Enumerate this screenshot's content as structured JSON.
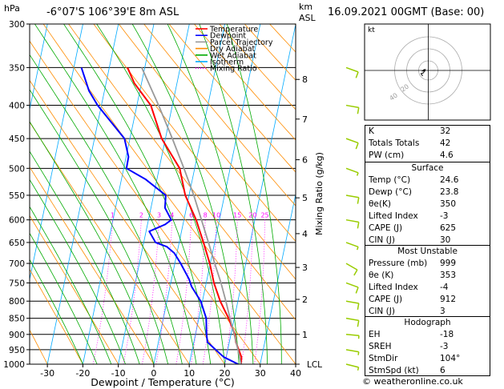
{
  "header": {
    "left_unit": "hPa",
    "location": "-6°07'S 106°39'E 8m ASL",
    "km_label": "km",
    "asl_label": "ASL",
    "datetime": "16.09.2021 00GMT (Base: 00)"
  },
  "legend": [
    {
      "label": "Temperature",
      "color": "#ff0000",
      "style": "solid"
    },
    {
      "label": "Dewpoint",
      "color": "#0000ff",
      "style": "solid"
    },
    {
      "label": "Parcel Trajectory",
      "color": "#999999",
      "style": "solid"
    },
    {
      "label": "Dry Adiabat",
      "color": "#ff8c00",
      "style": "solid"
    },
    {
      "label": "Wet Adiabat",
      "color": "#00aa00",
      "style": "solid"
    },
    {
      "label": "Isotherm",
      "color": "#00aaff",
      "style": "solid"
    },
    {
      "label": "Mixing Ratio",
      "color": "#ff00ff",
      "style": "dotted"
    }
  ],
  "chart_data": {
    "type": "line",
    "title": "",
    "xlabel": "Dewpoint / Temperature (°C)",
    "ylabel_left": "",
    "ylabel_right": "Mixing Ratio (g/kg)",
    "xlim": [
      -35,
      40
    ],
    "pressure_range_hpa": [
      300,
      1000
    ],
    "x_ticks": [
      "-30",
      "-20",
      "-10",
      "0",
      "10",
      "20",
      "30",
      "40"
    ],
    "pressure_ticks": [
      "300",
      "350",
      "400",
      "450",
      "500",
      "550",
      "600",
      "650",
      "700",
      "750",
      "800",
      "850",
      "900",
      "950",
      "1000"
    ],
    "km_ticks": [
      {
        "km": "8",
        "p": 365
      },
      {
        "km": "7",
        "p": 420
      },
      {
        "km": "6",
        "p": 485
      },
      {
        "km": "5",
        "p": 555
      },
      {
        "km": "4",
        "p": 630
      },
      {
        "km": "3",
        "p": 710
      },
      {
        "km": "2",
        "p": 795
      },
      {
        "km": "1",
        "p": 900
      }
    ],
    "lcl_label": "LCL",
    "lcl_p": 1000,
    "mixing_ratio_labels": [
      "1",
      "2",
      "3",
      "4",
      "6",
      "8",
      "10",
      "15",
      "20",
      "25"
    ],
    "skew_deg_per_hpa": 0.0286,
    "series": [
      {
        "name": "Temperature",
        "points": [
          [
            1000,
            24.6
          ],
          [
            975,
            24
          ],
          [
            950,
            22.5
          ],
          [
            925,
            21
          ],
          [
            900,
            20
          ],
          [
            850,
            16.8
          ],
          [
            800,
            13
          ],
          [
            750,
            9.8
          ],
          [
            700,
            7.2
          ],
          [
            650,
            4
          ],
          [
            600,
            0.5
          ],
          [
            550,
            -4
          ],
          [
            500,
            -7
          ],
          [
            450,
            -13.5
          ],
          [
            400,
            -18
          ],
          [
            370,
            -23.5
          ],
          [
            350,
            -26
          ]
        ]
      },
      {
        "name": "Dewpoint",
        "points": [
          [
            1000,
            23.8
          ],
          [
            975,
            19
          ],
          [
            950,
            16
          ],
          [
            925,
            13
          ],
          [
            900,
            12
          ],
          [
            850,
            10.5
          ],
          [
            800,
            7.5
          ],
          [
            760,
            3.8
          ],
          [
            740,
            2.5
          ],
          [
            700,
            -1
          ],
          [
            675,
            -3.5
          ],
          [
            660,
            -6
          ],
          [
            650,
            -9.5
          ],
          [
            625,
            -12
          ],
          [
            610,
            -8
          ],
          [
            600,
            -6.5
          ],
          [
            575,
            -9
          ],
          [
            550,
            -9.5
          ],
          [
            520,
            -16
          ],
          [
            500,
            -22
          ],
          [
            480,
            -22
          ],
          [
            450,
            -24
          ],
          [
            400,
            -33
          ],
          [
            380,
            -36
          ],
          [
            350,
            -39
          ]
        ]
      },
      {
        "name": "Parcel Trajectory",
        "points": [
          [
            1000,
            24.6
          ],
          [
            950,
            22.3
          ],
          [
            900,
            19.8
          ],
          [
            850,
            17.2
          ],
          [
            800,
            14.6
          ],
          [
            750,
            11.8
          ],
          [
            700,
            8.6
          ],
          [
            650,
            5.4
          ],
          [
            600,
            2
          ],
          [
            550,
            -1.6
          ],
          [
            500,
            -5.8
          ],
          [
            450,
            -10.5
          ],
          [
            400,
            -15.8
          ],
          [
            350,
            -22
          ]
        ]
      }
    ],
    "wind_barbs": [
      {
        "p": 1000,
        "dir": 104,
        "spd": 6
      },
      {
        "p": 950,
        "dir": 100,
        "spd": 5
      },
      {
        "p": 900,
        "dir": 95,
        "spd": 8
      },
      {
        "p": 850,
        "dir": 100,
        "spd": 10
      },
      {
        "p": 800,
        "dir": 100,
        "spd": 10
      },
      {
        "p": 750,
        "dir": 110,
        "spd": 10
      },
      {
        "p": 700,
        "dir": 120,
        "spd": 10
      },
      {
        "p": 650,
        "dir": 110,
        "spd": 8
      },
      {
        "p": 600,
        "dir": 100,
        "spd": 10
      },
      {
        "p": 550,
        "dir": 100,
        "spd": 10
      },
      {
        "p": 500,
        "dir": 110,
        "spd": 8
      },
      {
        "p": 450,
        "dir": 110,
        "spd": 10
      },
      {
        "p": 400,
        "dir": 100,
        "spd": 10
      },
      {
        "p": 350,
        "dir": 110,
        "spd": 10
      }
    ]
  },
  "hodograph": {
    "label": "kt",
    "ring_labels": [
      "20",
      "40"
    ]
  },
  "indices": [
    {
      "k": "K",
      "v": "32"
    },
    {
      "k": "Totals Totals",
      "v": "42"
    },
    {
      "k": "PW (cm)",
      "v": "4.6"
    }
  ],
  "surface": {
    "title": "Surface",
    "rows": [
      {
        "k": "Temp (°C)",
        "v": "24.6"
      },
      {
        "k": "Dewp (°C)",
        "v": "23.8"
      },
      {
        "k": "θe(K)",
        "v": "350"
      },
      {
        "k": "Lifted Index",
        "v": "-3"
      },
      {
        "k": "CAPE (J)",
        "v": "625"
      },
      {
        "k": "CIN (J)",
        "v": "30"
      }
    ]
  },
  "most_unstable": {
    "title": "Most Unstable",
    "rows": [
      {
        "k": "Pressure (mb)",
        "v": "999"
      },
      {
        "k": "θe (K)",
        "v": "353"
      },
      {
        "k": "Lifted Index",
        "v": "-4"
      },
      {
        "k": "CAPE (J)",
        "v": "912"
      },
      {
        "k": "CIN (J)",
        "v": "3"
      }
    ]
  },
  "hodograph_table": {
    "title": "Hodograph",
    "rows": [
      {
        "k": "EH",
        "v": "-18"
      },
      {
        "k": "SREH",
        "v": "-3"
      },
      {
        "k": "StmDir",
        "v": "104°"
      },
      {
        "k": "StmSpd (kt)",
        "v": "6"
      }
    ]
  },
  "footer": "© weatheronline.co.uk"
}
